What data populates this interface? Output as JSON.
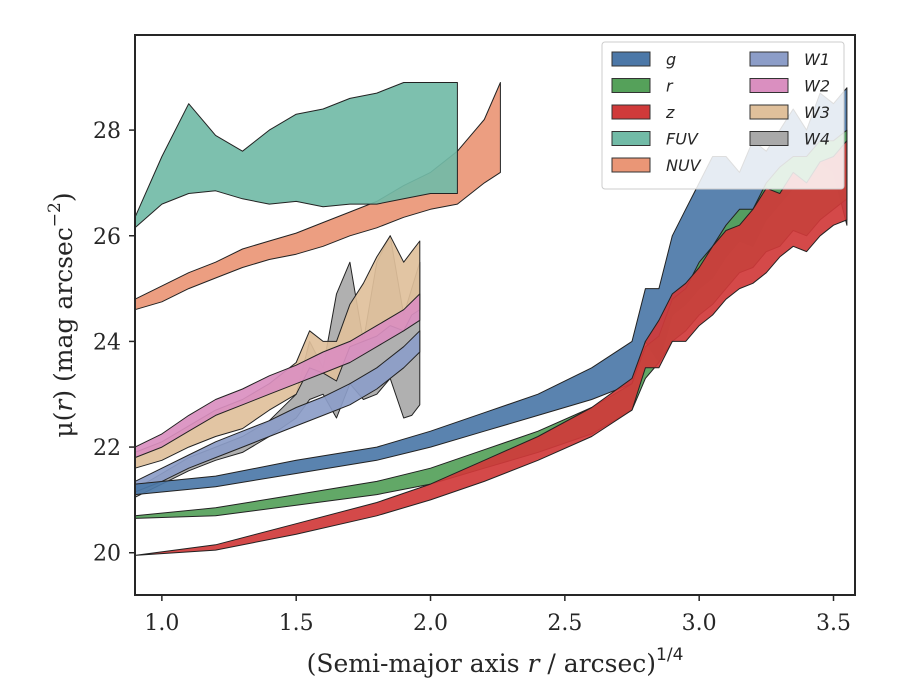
{
  "chart_data": {
    "type": "area",
    "xlabel_main": "(Semi-major axis ",
    "xlabel_var": "r",
    "xlabel_rest": " / arcsec)",
    "xlabel_sup": "1/4",
    "ylabel_main": "μ(",
    "ylabel_var": "r",
    "ylabel_rest": ") (mag arcsec",
    "ylabel_sup": "−2",
    "ylabel_end": ")",
    "xlim": [
      0.9,
      3.58
    ],
    "ylim": [
      29.8,
      19.2
    ],
    "y_inverted": true,
    "grid": false,
    "legend_placement": "top-right",
    "xticks": [
      {
        "v": 1.0,
        "label": "1.0"
      },
      {
        "v": 1.5,
        "label": "1.5"
      },
      {
        "v": 2.0,
        "label": "2.0"
      },
      {
        "v": 2.5,
        "label": "2.5"
      },
      {
        "v": 3.0,
        "label": "3.0"
      },
      {
        "v": 3.5,
        "label": "3.5"
      }
    ],
    "yticks": [
      {
        "v": 20,
        "label": "20"
      },
      {
        "v": 22,
        "label": "22"
      },
      {
        "v": 24,
        "label": "24"
      },
      {
        "v": 26,
        "label": "26"
      },
      {
        "v": 28,
        "label": "28"
      }
    ],
    "series": [
      {
        "name": "W4",
        "color": "#a9a9a9",
        "x": [
          0.9,
          1.0,
          1.1,
          1.2,
          1.3,
          1.4,
          1.5,
          1.55,
          1.6,
          1.65,
          1.7,
          1.75,
          1.8,
          1.85,
          1.9,
          1.93,
          1.96
        ],
        "y_upper": [
          21.05,
          21.3,
          21.55,
          21.75,
          21.9,
          22.2,
          22.55,
          22.9,
          23.0,
          22.55,
          23.2,
          22.9,
          23.0,
          23.3,
          22.55,
          22.6,
          22.8
        ],
        "y_lower": [
          21.2,
          21.5,
          21.8,
          22.0,
          22.2,
          22.5,
          23.0,
          24.0,
          23.5,
          24.9,
          25.5,
          24.0,
          25.5,
          26.0,
          24.5,
          25.0,
          25.5
        ]
      },
      {
        "name": "W3",
        "color": "#e0c09b",
        "x": [
          0.9,
          1.0,
          1.1,
          1.2,
          1.3,
          1.4,
          1.5,
          1.55,
          1.6,
          1.65,
          1.7,
          1.75,
          1.8,
          1.85,
          1.9,
          1.93,
          1.96
        ],
        "y_upper": [
          21.6,
          21.75,
          22.0,
          22.2,
          22.35,
          22.7,
          23.0,
          23.5,
          23.4,
          23.25,
          23.9,
          24.0,
          24.1,
          24.3,
          24.2,
          24.5,
          24.6
        ],
        "y_lower": [
          21.9,
          22.1,
          22.4,
          22.7,
          22.9,
          23.2,
          23.6,
          24.2,
          24.0,
          24.0,
          24.7,
          25.1,
          25.6,
          26.0,
          25.5,
          25.7,
          25.9
        ]
      },
      {
        "name": "W2",
        "color": "#da8fc0",
        "x": [
          0.9,
          1.0,
          1.1,
          1.2,
          1.3,
          1.4,
          1.5,
          1.6,
          1.7,
          1.8,
          1.9,
          1.96
        ],
        "y_upper": [
          21.8,
          22.0,
          22.3,
          22.6,
          22.8,
          23.0,
          23.2,
          23.4,
          23.6,
          23.9,
          24.2,
          24.4
        ],
        "y_lower": [
          22.0,
          22.25,
          22.6,
          22.9,
          23.1,
          23.35,
          23.55,
          23.8,
          24.0,
          24.3,
          24.6,
          24.9
        ]
      },
      {
        "name": "W1",
        "color": "#8c9dc8",
        "x": [
          0.9,
          1.0,
          1.1,
          1.2,
          1.3,
          1.4,
          1.5,
          1.6,
          1.7,
          1.8,
          1.9,
          1.96
        ],
        "y_upper": [
          21.15,
          21.35,
          21.6,
          21.8,
          22.0,
          22.2,
          22.4,
          22.6,
          22.8,
          23.1,
          23.5,
          23.8
        ],
        "y_lower": [
          21.35,
          21.6,
          21.85,
          22.1,
          22.3,
          22.5,
          22.75,
          22.95,
          23.2,
          23.5,
          23.9,
          24.2
        ]
      },
      {
        "name": "g",
        "color": "#4c78a8",
        "x": [
          0.9,
          1.2,
          1.5,
          1.8,
          2.0,
          2.2,
          2.4,
          2.6,
          2.75,
          2.8,
          2.85,
          2.9,
          2.95,
          3.0,
          3.05,
          3.1,
          3.15,
          3.2,
          3.25,
          3.3,
          3.35,
          3.4,
          3.45,
          3.5,
          3.55
        ],
        "y_upper": [
          21.1,
          21.25,
          21.5,
          21.75,
          22.0,
          22.3,
          22.6,
          22.9,
          23.2,
          24.0,
          23.6,
          24.5,
          24.7,
          25.0,
          25.2,
          25.6,
          25.9,
          25.8,
          26.3,
          26.6,
          26.9,
          27.0,
          27.4,
          27.2,
          26.2
        ],
        "y_lower": [
          21.3,
          21.45,
          21.75,
          22.0,
          22.3,
          22.65,
          23.0,
          23.5,
          24.0,
          25.0,
          25.0,
          26.0,
          26.5,
          27.0,
          27.5,
          27.5,
          27.2,
          27.8,
          27.6,
          28.0,
          28.4,
          28.0,
          28.7,
          28.5,
          28.8
        ]
      },
      {
        "name": "r",
        "color": "#55a15a",
        "x": [
          0.9,
          1.2,
          1.5,
          1.8,
          2.0,
          2.2,
          2.4,
          2.6,
          2.75,
          2.8,
          2.85,
          2.9,
          2.95,
          3.0,
          3.05,
          3.1,
          3.15,
          3.2,
          3.25,
          3.3,
          3.35,
          3.4,
          3.45,
          3.5,
          3.55
        ],
        "y_upper": [
          20.65,
          20.7,
          20.9,
          21.1,
          21.3,
          21.6,
          21.9,
          22.25,
          22.7,
          23.3,
          23.6,
          24.0,
          24.2,
          24.5,
          24.7,
          25.0,
          25.3,
          25.4,
          25.7,
          25.8,
          26.1,
          26.0,
          26.3,
          26.5,
          26.7
        ],
        "y_lower": [
          20.7,
          20.85,
          21.1,
          21.35,
          21.6,
          21.95,
          22.3,
          22.75,
          23.2,
          23.9,
          24.1,
          24.8,
          25.0,
          25.5,
          25.8,
          26.2,
          26.5,
          26.5,
          27.0,
          27.3,
          27.5,
          27.5,
          27.8,
          27.8,
          28.0
        ]
      },
      {
        "name": "z",
        "color": "#d03a3a",
        "x": [
          0.9,
          1.2,
          1.5,
          1.8,
          2.0,
          2.2,
          2.4,
          2.6,
          2.75,
          2.8,
          2.85,
          2.9,
          2.95,
          3.0,
          3.05,
          3.1,
          3.15,
          3.2,
          3.25,
          3.3,
          3.35,
          3.4,
          3.45,
          3.5,
          3.55
        ],
        "y_upper": [
          19.95,
          20.05,
          20.35,
          20.7,
          21.0,
          21.35,
          21.75,
          22.2,
          22.7,
          23.5,
          23.5,
          24.0,
          24.0,
          24.3,
          24.5,
          24.8,
          25.0,
          25.1,
          25.3,
          25.6,
          25.8,
          25.7,
          26.0,
          26.2,
          26.3
        ],
        "y_lower": [
          19.95,
          20.15,
          20.55,
          20.95,
          21.3,
          21.75,
          22.2,
          22.75,
          23.3,
          24.0,
          24.4,
          24.9,
          25.1,
          25.4,
          25.8,
          26.1,
          26.2,
          26.5,
          26.9,
          26.8,
          27.2,
          27.0,
          27.4,
          27.5,
          27.8
        ]
      },
      {
        "name": "NUV",
        "color": "#ea9676",
        "x": [
          0.9,
          1.0,
          1.1,
          1.2,
          1.3,
          1.4,
          1.5,
          1.6,
          1.7,
          1.8,
          1.9,
          2.0,
          2.1,
          2.2,
          2.26
        ],
        "y_upper": [
          24.6,
          24.75,
          25.0,
          25.2,
          25.4,
          25.55,
          25.65,
          25.8,
          26.0,
          26.15,
          26.35,
          26.5,
          26.6,
          27.0,
          27.2
        ],
        "y_lower": [
          24.8,
          25.05,
          25.3,
          25.5,
          25.75,
          25.9,
          26.05,
          26.25,
          26.45,
          26.65,
          26.95,
          27.2,
          27.6,
          28.2,
          28.9
        ]
      },
      {
        "name": "FUV",
        "color": "#72bba7",
        "x": [
          0.9,
          1.0,
          1.1,
          1.2,
          1.3,
          1.4,
          1.5,
          1.6,
          1.7,
          1.8,
          1.9,
          2.0,
          2.1
        ],
        "y_upper": [
          26.15,
          26.6,
          26.8,
          26.85,
          26.7,
          26.6,
          26.65,
          26.55,
          26.6,
          26.6,
          26.7,
          26.8,
          26.8
        ],
        "y_lower": [
          26.35,
          27.5,
          28.5,
          27.9,
          27.6,
          28.0,
          28.3,
          28.4,
          28.6,
          28.7,
          28.9,
          28.9,
          28.9
        ]
      }
    ],
    "legend": [
      {
        "name": "g",
        "color": "#4c78a8"
      },
      {
        "name": "r",
        "color": "#55a15a"
      },
      {
        "name": "z",
        "color": "#d03a3a"
      },
      {
        "name": "FUV",
        "color": "#72bba7"
      },
      {
        "name": "NUV",
        "color": "#ea9676"
      },
      {
        "name": "W1",
        "color": "#8c9dc8"
      },
      {
        "name": "W2",
        "color": "#da8fc0"
      },
      {
        "name": "W3",
        "color": "#e0c09b"
      },
      {
        "name": "W4",
        "color": "#a9a9a9"
      }
    ]
  }
}
